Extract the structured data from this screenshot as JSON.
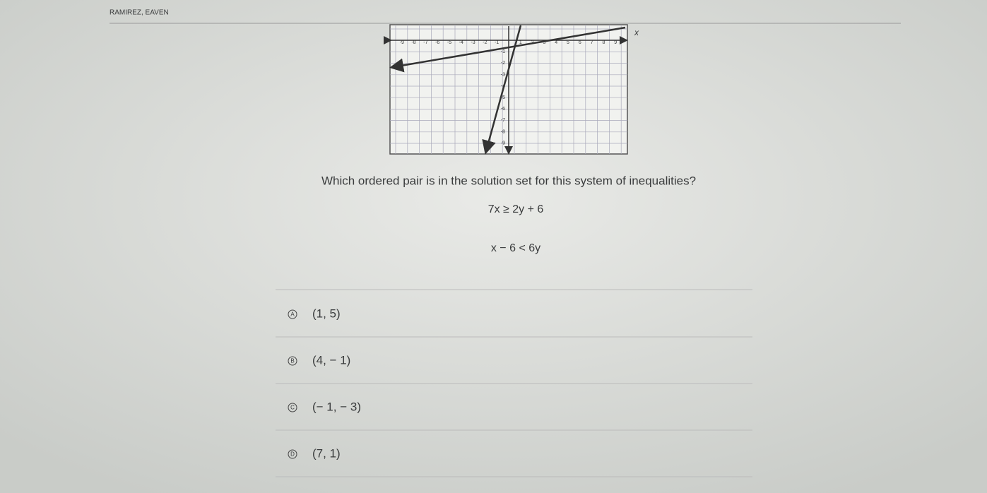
{
  "header": {
    "name": "RAMIREZ, EAVEN"
  },
  "graph": {
    "axis_label": "x",
    "x_labels": [
      "-9",
      "-8",
      "-7",
      "-6",
      "-5",
      "-4",
      "-3",
      "-2",
      "-1",
      "1",
      "2",
      "3",
      "4",
      "5",
      "6",
      "7",
      "8",
      "9"
    ],
    "y_labels": [
      "-1",
      "-2",
      "-3",
      "-4",
      "-5",
      "-6",
      "-7",
      "-8",
      "-9"
    ]
  },
  "question": {
    "text": "Which ordered pair is in the solution set for this system of inequalities?",
    "inequalities": [
      "7x ≥ 2y + 6",
      "x − 6 < 6y"
    ],
    "choices": [
      {
        "letter": "A",
        "text": "(1, 5)"
      },
      {
        "letter": "B",
        "text": "(4, − 1)"
      },
      {
        "letter": "C",
        "text": "(− 1, − 3)"
      },
      {
        "letter": "D",
        "text": "(7, 1)"
      }
    ]
  }
}
